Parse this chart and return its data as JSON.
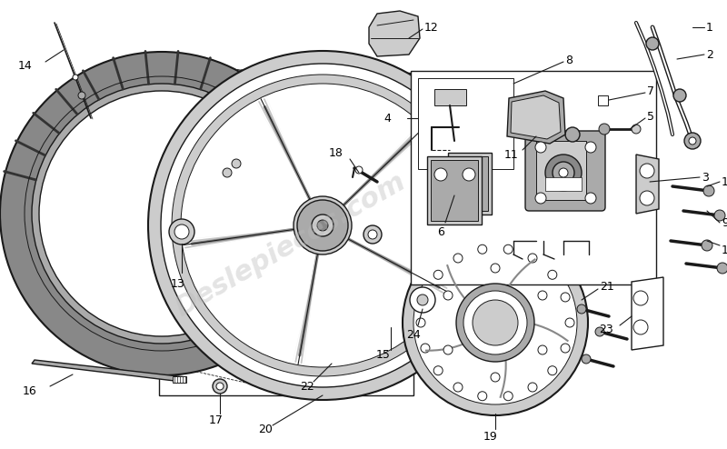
{
  "bg_color": "#ffffff",
  "line_color": "#1a1a1a",
  "gray_dark": "#888888",
  "gray_mid": "#aaaaaa",
  "gray_light": "#cccccc",
  "gray_fill": "#999999",
  "figsize": [
    8.0,
    4.94
  ],
  "dpi": 100,
  "watermark": "Deslepieces.com"
}
